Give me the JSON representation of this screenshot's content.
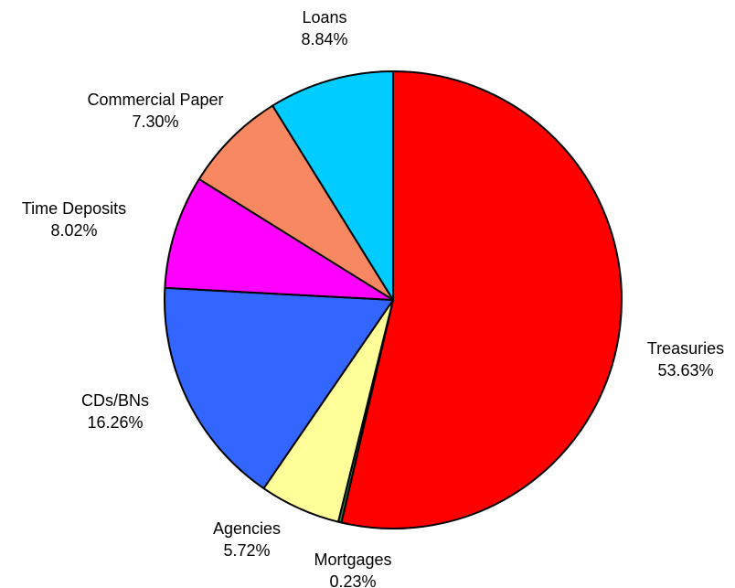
{
  "chart_data": {
    "type": "pie",
    "title": "",
    "start_angle": "12 o'clock",
    "direction": "clockwise",
    "slices": [
      {
        "label": "Treasuries",
        "value_label": "53.63%",
        "value": 53.63,
        "color": "#ff0000"
      },
      {
        "label": "Mortgages",
        "value_label": "0.23%",
        "value": 0.23,
        "color": "#2f7d2f"
      },
      {
        "label": "Agencies",
        "value_label": "5.72%",
        "value": 5.72,
        "color": "#ffff99"
      },
      {
        "label": "CDs/BNs",
        "value_label": "16.26%",
        "value": 16.26,
        "color": "#3366ff"
      },
      {
        "label": "Time Deposits",
        "value_label": "8.02%",
        "value": 8.02,
        "color": "#ff00ff"
      },
      {
        "label": "Commercial Paper",
        "value_label": "7.30%",
        "value": 7.3,
        "color": "#f88862"
      },
      {
        "label": "Loans",
        "value_label": "8.84%",
        "value": 8.84,
        "color": "#00ccff"
      }
    ]
  }
}
